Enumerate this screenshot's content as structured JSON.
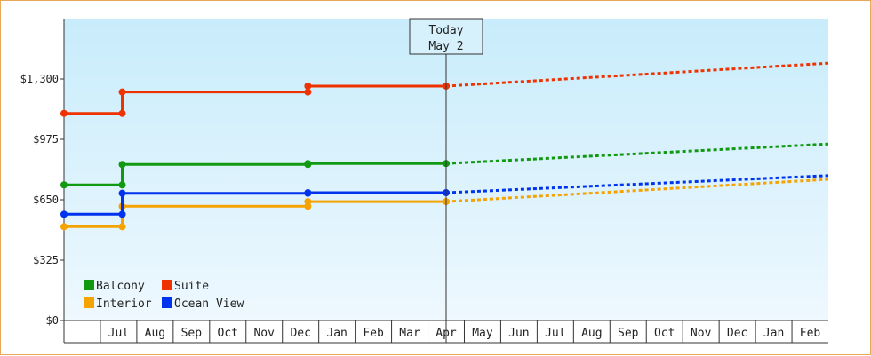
{
  "today_callout": {
    "line1": "Today",
    "line2": "May 2"
  },
  "chart_data": {
    "type": "line",
    "title": "",
    "xlabel": "",
    "ylabel": "",
    "ylim": [
      0,
      1625
    ],
    "yticks": [
      {
        "value": 0,
        "label": "$0"
      },
      {
        "value": 325,
        "label": "$325"
      },
      {
        "value": 650,
        "label": "$650"
      },
      {
        "value": 975,
        "label": "$975"
      },
      {
        "value": 1300,
        "label": "$1,300"
      }
    ],
    "x_months": [
      "Jul",
      "Aug",
      "Sep",
      "Oct",
      "Nov",
      "Dec",
      "Jan",
      "Feb",
      "Mar",
      "Apr",
      "May",
      "Jun",
      "Jul",
      "Aug",
      "Sep",
      "Oct",
      "Nov",
      "Dec",
      "Jan",
      "Feb"
    ],
    "x_domain": [
      0,
      21
    ],
    "today_x": 10.5,
    "grid": false,
    "legend_placement": "bottom-left",
    "series": [
      {
        "name": "Balcony",
        "color": "#119911",
        "points": [
          [
            0,
            730
          ],
          [
            1.6,
            730
          ],
          [
            1.6,
            840
          ],
          [
            6.7,
            840
          ],
          [
            6.7,
            845
          ],
          [
            10.5,
            845
          ]
        ],
        "markers": [
          [
            0,
            730
          ],
          [
            1.6,
            730
          ],
          [
            1.6,
            840
          ],
          [
            6.7,
            840
          ],
          [
            6.7,
            845
          ],
          [
            10.5,
            845
          ]
        ],
        "forecast": [
          [
            10.5,
            845
          ],
          [
            21,
            950
          ]
        ]
      },
      {
        "name": "Suite",
        "color": "#ee3300",
        "points": [
          [
            0,
            1115
          ],
          [
            1.6,
            1115
          ],
          [
            1.6,
            1230
          ],
          [
            6.7,
            1230
          ],
          [
            6.7,
            1262
          ],
          [
            10.5,
            1262
          ]
        ],
        "markers": [
          [
            0,
            1115
          ],
          [
            1.6,
            1115
          ],
          [
            1.6,
            1230
          ],
          [
            6.7,
            1230
          ],
          [
            6.7,
            1262
          ],
          [
            10.5,
            1262
          ]
        ],
        "forecast": [
          [
            10.5,
            1262
          ],
          [
            21,
            1385
          ]
        ]
      },
      {
        "name": "Interior",
        "color": "#f5a300",
        "points": [
          [
            0,
            505
          ],
          [
            1.6,
            505
          ],
          [
            1.6,
            615
          ],
          [
            6.7,
            615
          ],
          [
            6.7,
            640
          ],
          [
            10.5,
            640
          ]
        ],
        "markers": [
          [
            0,
            505
          ],
          [
            1.6,
            505
          ],
          [
            1.6,
            615
          ],
          [
            6.7,
            615
          ],
          [
            6.7,
            640
          ],
          [
            10.5,
            640
          ]
        ],
        "forecast": [
          [
            10.5,
            640
          ],
          [
            21,
            760
          ]
        ]
      },
      {
        "name": "Ocean View",
        "color": "#0033ee",
        "points": [
          [
            0,
            572
          ],
          [
            1.6,
            572
          ],
          [
            1.6,
            685
          ],
          [
            6.7,
            685
          ],
          [
            6.7,
            688
          ],
          [
            10.5,
            688
          ]
        ],
        "markers": [
          [
            0,
            572
          ],
          [
            1.6,
            572
          ],
          [
            1.6,
            685
          ],
          [
            6.7,
            685
          ],
          [
            6.7,
            688
          ],
          [
            10.5,
            688
          ]
        ],
        "forecast": [
          [
            10.5,
            688
          ],
          [
            21,
            780
          ]
        ]
      }
    ]
  }
}
